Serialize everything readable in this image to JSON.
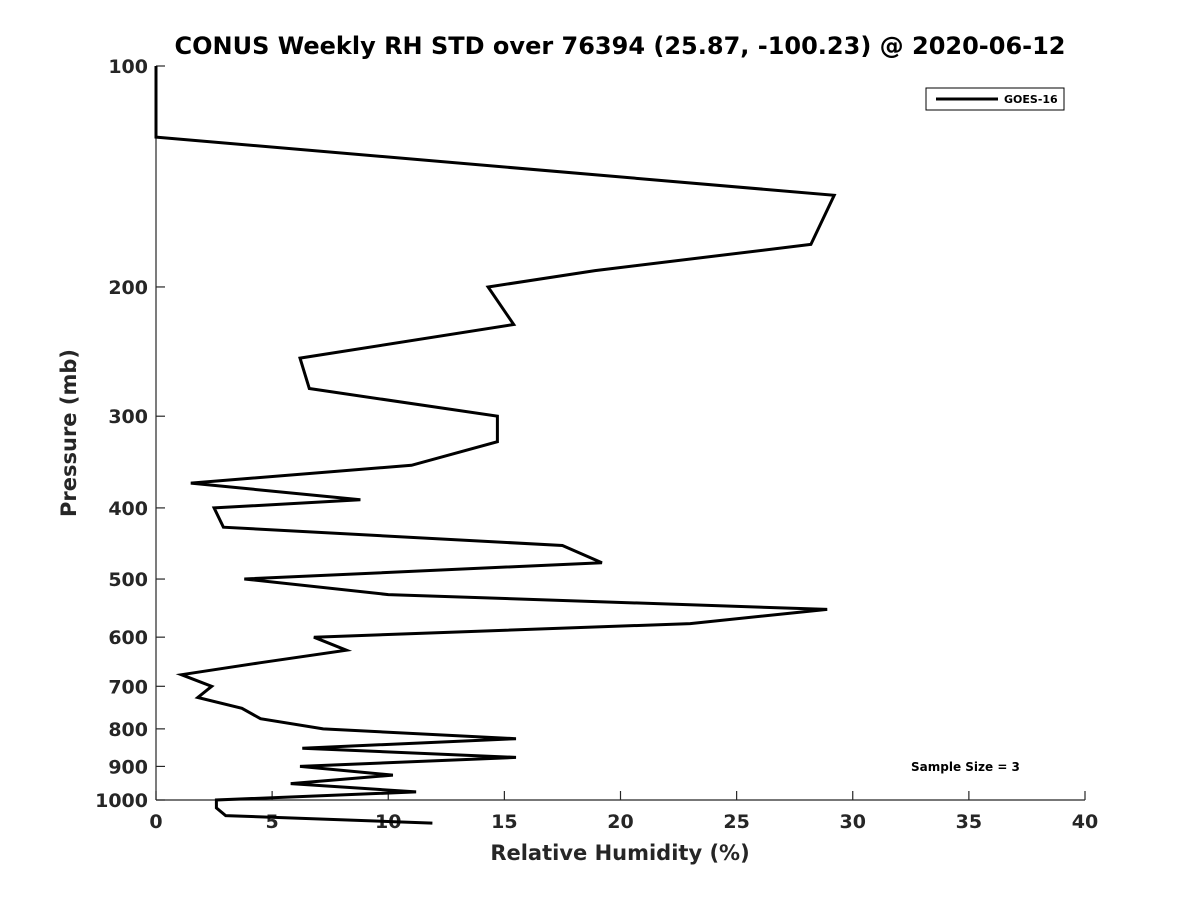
{
  "chart_data": {
    "type": "line",
    "title": "CONUS Weekly RH STD over 76394 (25.87, -100.23) @ 2020-06-12",
    "xlabel": "Relative Humidity (%)",
    "ylabel": "Pressure (mb)",
    "xlim": [
      0,
      40
    ],
    "ylim": [
      100,
      1000
    ],
    "y_scale": "log",
    "y_reversed": true,
    "grid": false,
    "x_ticks": [
      0,
      5,
      10,
      15,
      20,
      25,
      30,
      35,
      40
    ],
    "x_tick_labels": [
      "0",
      "5",
      "10",
      "15",
      "20",
      "25",
      "30",
      "35",
      "40"
    ],
    "y_ticks": [
      100,
      200,
      300,
      400,
      500,
      600,
      700,
      800,
      900,
      1000
    ],
    "y_tick_labels": [
      "100",
      "200",
      "300",
      "400",
      "500",
      "600",
      "700",
      "800",
      "900",
      "1000"
    ],
    "legend_position": "top-right",
    "annotation": "Sample Size = 3",
    "series": [
      {
        "name": "GOES-16",
        "color": "#000000",
        "x": [
          0.0,
          0.0,
          29.2,
          28.2,
          18.9,
          14.3,
          15.4,
          6.2,
          6.6,
          14.7,
          14.7,
          11.0,
          1.5,
          8.8,
          2.5,
          2.9,
          17.5,
          19.2,
          3.8,
          10.0,
          28.9,
          23.0,
          6.8,
          8.2,
          4.5,
          1.1,
          2.4,
          1.8,
          3.7,
          4.5,
          7.2,
          15.5,
          6.3,
          15.5,
          6.2,
          10.2,
          5.8,
          11.2,
          2.6,
          2.6,
          3.0,
          11.9
        ],
        "y": [
          100,
          125,
          150,
          175,
          190,
          200,
          225,
          250,
          275,
          300,
          325,
          350,
          370,
          390,
          400,
          425,
          450,
          475,
          500,
          525,
          550,
          575,
          600,
          625,
          650,
          675,
          700,
          725,
          750,
          775,
          800,
          825,
          850,
          875,
          900,
          925,
          950,
          975,
          1000,
          1025,
          1050,
          1075
        ]
      }
    ]
  }
}
